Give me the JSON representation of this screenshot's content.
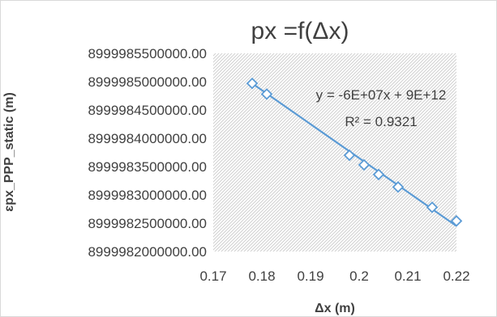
{
  "chart_data": {
    "type": "scatter",
    "title": "px =f(Δx)",
    "xlabel": "Δx (m)",
    "ylabel": "ɛpx_PPP_static (m)",
    "xlim": [
      0.17,
      0.22
    ],
    "ylim": [
      8999982000000,
      8999985500000
    ],
    "x_ticks": [
      0.17,
      0.18,
      0.19,
      0.2,
      0.21,
      0.22
    ],
    "x_tick_labels": [
      "0.17",
      "0.18",
      "0.19",
      "0.2",
      "0.21",
      "0.22"
    ],
    "y_ticks": [
      8999982000000,
      8999982500000,
      8999983000000,
      8999983500000,
      8999984000000,
      8999984500000,
      8999985000000,
      8999985500000
    ],
    "y_tick_labels": [
      "8999982000000.00",
      "8999982500000.00",
      "8999983000000.00",
      "8999983500000.00",
      "8999984000000.00",
      "8999984500000.00",
      "8999985000000.00",
      "8999985500000.00"
    ],
    "series": [
      {
        "points": [
          [
            0.178,
            8999984970000
          ],
          [
            0.181,
            8999984780000
          ],
          [
            0.198,
            8999983700000
          ],
          [
            0.201,
            8999983530000
          ],
          [
            0.204,
            8999983360000
          ],
          [
            0.208,
            8999983140000
          ],
          [
            0.215,
            8999982780000
          ],
          [
            0.22,
            8999982540000
          ]
        ],
        "marker": "diamond-open",
        "color": "#5b9bd5"
      }
    ],
    "trendline": {
      "type": "linear",
      "x_range": [
        0.178,
        0.22
      ],
      "y_start": 8999984970000,
      "y_end": 8999982450000,
      "color": "#5b9bd5",
      "equation": "y = -6E+07x + 9E+12",
      "r_squared": "R² = 0.9321"
    },
    "grid": false,
    "plot_area_fill": "diagonal-hatch",
    "legend": "none"
  }
}
